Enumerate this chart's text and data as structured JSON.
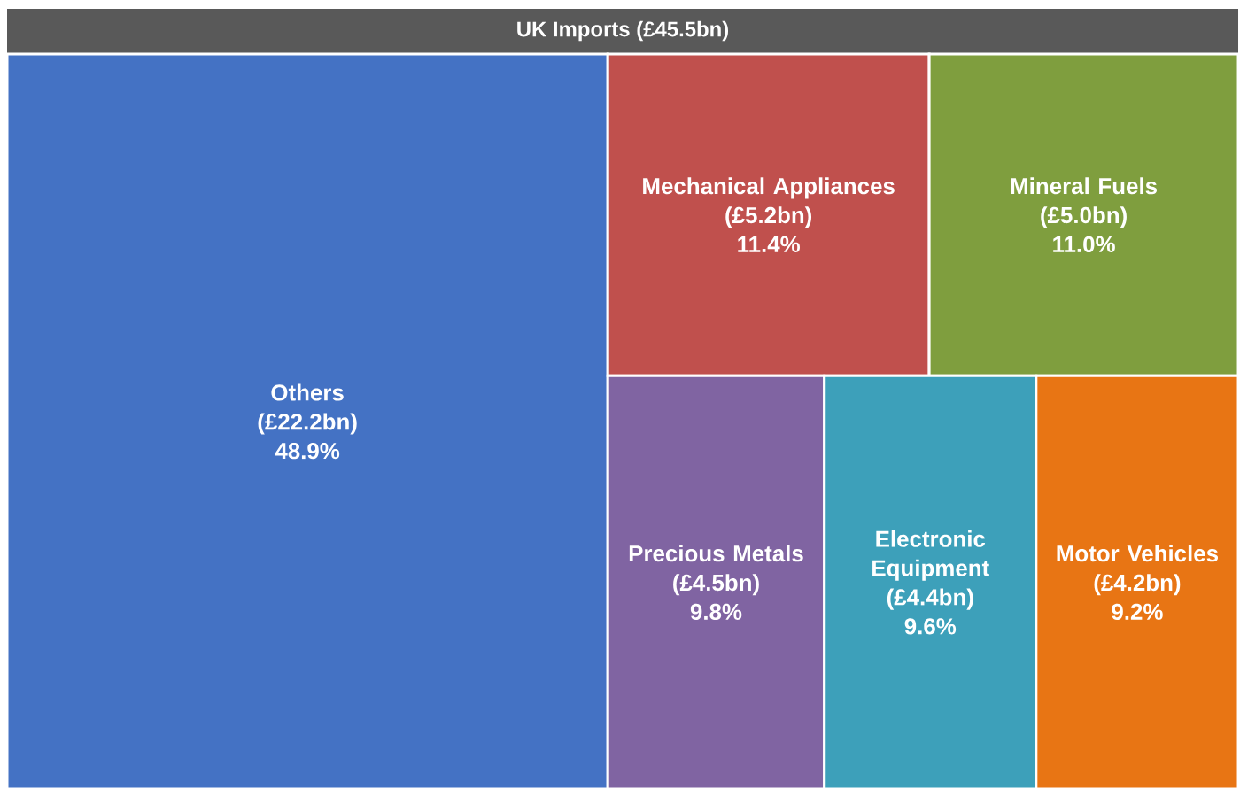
{
  "chart_data": {
    "type": "other",
    "title": "UK Imports (£45.5bn)",
    "categories": [
      "Others",
      "Mechanical Appliances",
      "Mineral Fuels",
      "Precious Metals",
      "Electronic Equipment",
      "Motor Vehicles"
    ],
    "series": [
      {
        "colors": [
          "#4472c4",
          "#c0504d",
          "#7f9e3e",
          "#8064a2",
          "#3da0ba",
          "#e87514"
        ],
        "values": [
          22.2,
          5.2,
          5.0,
          4.5,
          4.4,
          4.2
        ],
        "value_labels": [
          "(£22.2bn)",
          "(£5.2bn)",
          "(£5.0bn)",
          "(£4.5bn)",
          "(£4.4bn)",
          "(£4.2bn)"
        ]
      },
      {
        "values": [
          48.9,
          11.4,
          11.0,
          9.8,
          9.6,
          9.2
        ],
        "value_labels": [
          "48.9%",
          "11.4%",
          "11.0%",
          "9.8%",
          "9.6%",
          "9.2%"
        ]
      }
    ]
  }
}
